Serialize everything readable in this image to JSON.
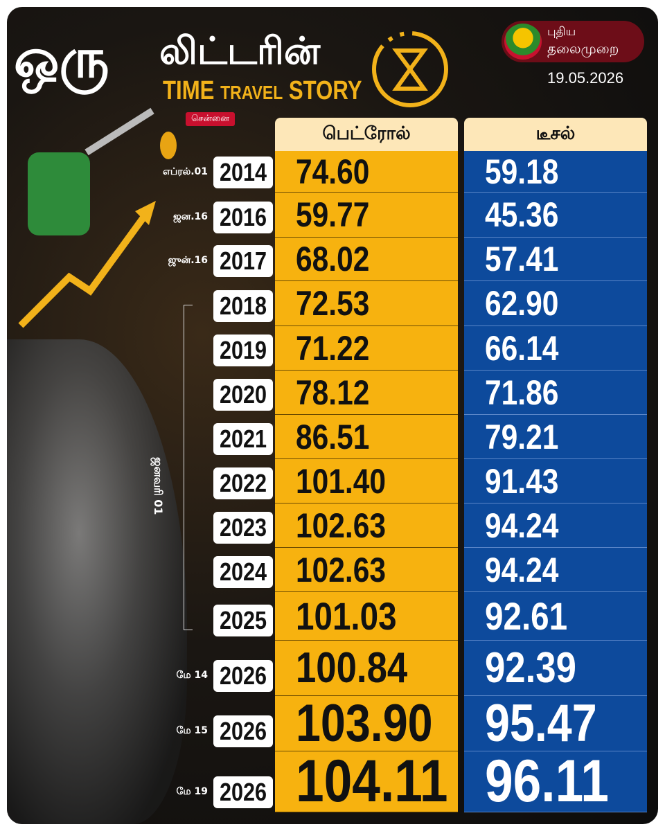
{
  "header": {
    "title_word1": "ஒரு",
    "title_word2": "லிட்டரின்",
    "subtitle": [
      "TIME",
      "TRAVEL",
      "STORY"
    ],
    "city": "சென்னை"
  },
  "brand": {
    "name_line1": "புதிய",
    "name_line2": "தலைமுறை",
    "date": "19.05.2026"
  },
  "group_label": "ஜனவரி 01",
  "table": {
    "columns": [
      "பெட்ரோல்",
      "டீசல்"
    ],
    "rows": [
      {
        "date": "எப்ரல்.01",
        "year": "2014",
        "petrol": "74.60",
        "diesel": "59.18"
      },
      {
        "date": "ஜன.16",
        "year": "2016",
        "petrol": "59.77",
        "diesel": "45.36"
      },
      {
        "date": "ஜுன்.16",
        "year": "2017",
        "petrol": "68.02",
        "diesel": "57.41"
      },
      {
        "year": "2018",
        "petrol": "72.53",
        "diesel": "62.90"
      },
      {
        "year": "2019",
        "petrol": "71.22",
        "diesel": "66.14"
      },
      {
        "year": "2020",
        "petrol": "78.12",
        "diesel": "71.86"
      },
      {
        "year": "2021",
        "petrol": "86.51",
        "diesel": "79.21"
      },
      {
        "year": "2022",
        "petrol": "101.40",
        "diesel": "91.43"
      },
      {
        "year": "2023",
        "petrol": "102.63",
        "diesel": "94.24"
      },
      {
        "year": "2024",
        "petrol": "102.63",
        "diesel": "94.24"
      },
      {
        "year": "2025",
        "petrol": "101.03",
        "diesel": "92.61"
      },
      {
        "date": "மே 14",
        "year": "2026",
        "petrol": "100.84",
        "diesel": "92.39"
      },
      {
        "date": "மே 15",
        "year": "2026",
        "petrol": "103.90",
        "diesel": "95.47"
      },
      {
        "date": "மே 19",
        "year": "2026",
        "petrol": "104.11",
        "diesel": "96.11"
      }
    ]
  }
}
